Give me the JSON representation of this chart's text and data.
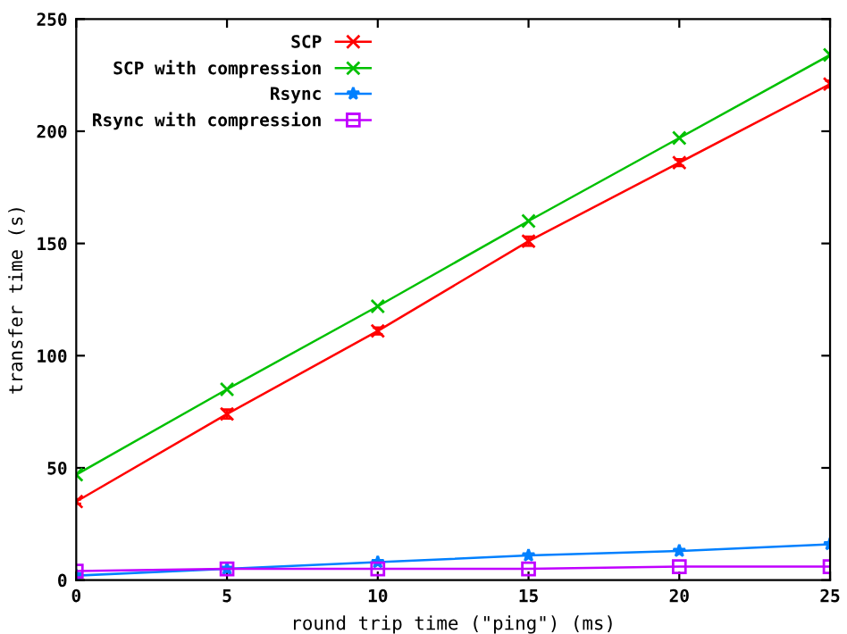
{
  "chart_data": {
    "type": "line",
    "xlabel": "round trip time (\"ping\") (ms)",
    "ylabel": "transfer time (s)",
    "x": [
      0,
      5,
      10,
      15,
      20,
      25
    ],
    "series": [
      {
        "name": "SCP",
        "color": "#ff0000",
        "marker": "cross",
        "values": [
          35,
          74,
          111,
          151,
          186,
          221
        ],
        "errors": [
          1,
          2,
          1.5,
          2,
          1.5,
          1.5
        ]
      },
      {
        "name": "SCP with compression",
        "color": "#00c000",
        "marker": "cross",
        "values": [
          47,
          85,
          122,
          160,
          197,
          234
        ]
      },
      {
        "name": "Rsync",
        "color": "#0080ff",
        "marker": "star",
        "values": [
          2,
          5,
          8,
          11,
          13,
          16
        ]
      },
      {
        "name": "Rsync with compression",
        "color": "#c000ff",
        "marker": "square",
        "values": [
          4,
          5,
          5,
          5,
          6,
          6
        ]
      }
    ],
    "xlim": [
      0,
      25
    ],
    "ylim": [
      0,
      250
    ],
    "xticks": [
      0,
      5,
      10,
      15,
      20,
      25
    ],
    "yticks": [
      0,
      50,
      100,
      150,
      200,
      250
    ],
    "grid": false,
    "legend": "top left",
    "line_style": "solid"
  }
}
